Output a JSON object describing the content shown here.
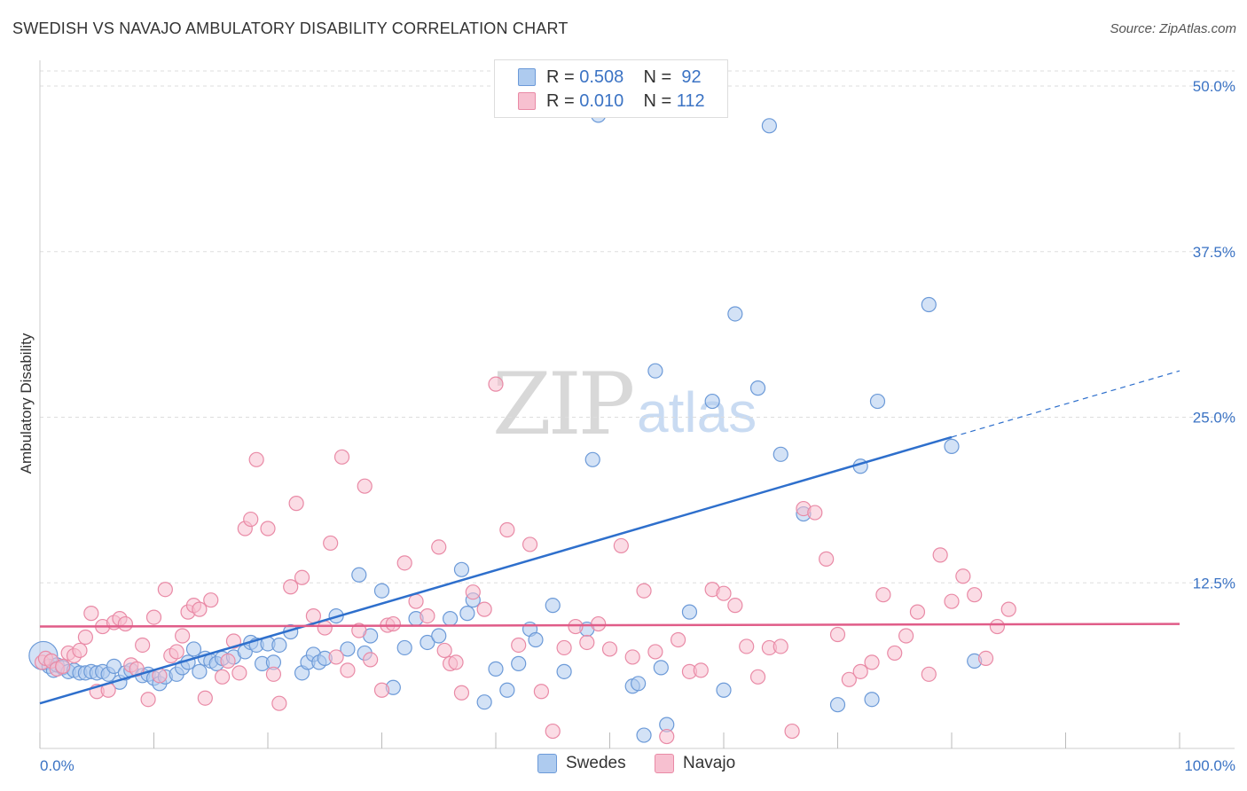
{
  "title": "SWEDISH VS NAVAJO AMBULATORY DISABILITY CORRELATION CHART",
  "source": "Source: ZipAtlas.com",
  "watermark": {
    "zip": "ZIP",
    "atlas": "atlas"
  },
  "legend": {
    "rows": [
      {
        "r_label": "R =",
        "r_value": "0.508",
        "n_label": "N =",
        "n_value": "92"
      },
      {
        "r_label": "R =",
        "r_value": "0.010",
        "n_label": "N =",
        "n_value": "112"
      }
    ]
  },
  "colors": {
    "swedes_fill": "#aecbef",
    "swedes_stroke": "#6c9ad8",
    "swedes_line": "#2e6fcc",
    "navajo_fill": "#f7c0d0",
    "navajo_stroke": "#e98aa6",
    "navajo_line": "#e05c88",
    "grid": "#dddddd",
    "tick_text": "#3b73c4"
  },
  "chart_data": {
    "type": "scatter",
    "title": "SWEDISH VS NAVAJO AMBULATORY DISABILITY CORRELATION CHART",
    "xlabel": "",
    "ylabel": "Ambulatory Disability",
    "xlim": [
      0,
      100
    ],
    "ylim": [
      0,
      50
    ],
    "x_tick_labels": [
      "0.0%",
      "100.0%"
    ],
    "y_ticks": [
      12.5,
      25.0,
      37.5,
      50.0
    ],
    "y_tick_labels": [
      "12.5%",
      "25.0%",
      "37.5%",
      "50.0%"
    ],
    "grid": true,
    "legend_placement": "bottom",
    "series": [
      {
        "name": "Swedes",
        "trend": {
          "x0": 0,
          "y0": 3.4,
          "x1": 80,
          "y1": 23.5,
          "dashed_to_x": 100,
          "dashed_to_y": 28.5
        },
        "points": [
          [
            0.3,
            7.0
          ],
          [
            0.8,
            6.2
          ],
          [
            1.2,
            5.9
          ],
          [
            1.5,
            6.3
          ],
          [
            2.0,
            6.1
          ],
          [
            2.5,
            5.8
          ],
          [
            3.0,
            5.9
          ],
          [
            3.5,
            5.7
          ],
          [
            4.0,
            5.7
          ],
          [
            4.5,
            5.8
          ],
          [
            5.0,
            5.7
          ],
          [
            5.5,
            5.8
          ],
          [
            6.0,
            5.6
          ],
          [
            6.5,
            6.2
          ],
          [
            7.0,
            5.0
          ],
          [
            7.5,
            5.7
          ],
          [
            8.0,
            5.9
          ],
          [
            9.0,
            5.5
          ],
          [
            9.5,
            5.6
          ],
          [
            10.0,
            5.3
          ],
          [
            10.5,
            4.9
          ],
          [
            11.0,
            5.4
          ],
          [
            12.0,
            5.6
          ],
          [
            12.5,
            6.1
          ],
          [
            13.0,
            6.5
          ],
          [
            13.5,
            7.5
          ],
          [
            14.0,
            5.8
          ],
          [
            14.5,
            6.8
          ],
          [
            15.0,
            6.6
          ],
          [
            15.5,
            6.4
          ],
          [
            16.0,
            6.8
          ],
          [
            17.0,
            6.9
          ],
          [
            18.0,
            7.3
          ],
          [
            18.5,
            8.0
          ],
          [
            19.0,
            7.8
          ],
          [
            19.5,
            6.4
          ],
          [
            20.0,
            7.9
          ],
          [
            20.5,
            6.5
          ],
          [
            21.0,
            7.8
          ],
          [
            22.0,
            8.8
          ],
          [
            23.0,
            5.7
          ],
          [
            23.5,
            6.5
          ],
          [
            24.0,
            7.1
          ],
          [
            24.5,
            6.5
          ],
          [
            25.0,
            6.8
          ],
          [
            26.0,
            10.0
          ],
          [
            27.0,
            7.5
          ],
          [
            28.0,
            13.1
          ],
          [
            28.5,
            7.2
          ],
          [
            29.0,
            8.5
          ],
          [
            30.0,
            11.9
          ],
          [
            31.0,
            4.6
          ],
          [
            32.0,
            7.6
          ],
          [
            33.0,
            9.8
          ],
          [
            34.0,
            8.0
          ],
          [
            35.0,
            8.5
          ],
          [
            36.0,
            9.8
          ],
          [
            37.0,
            13.5
          ],
          [
            37.5,
            10.2
          ],
          [
            38.0,
            11.2
          ],
          [
            39.0,
            3.5
          ],
          [
            40.0,
            6.0
          ],
          [
            41.0,
            4.4
          ],
          [
            42.0,
            6.4
          ],
          [
            43.0,
            9.0
          ],
          [
            43.5,
            8.2
          ],
          [
            45.0,
            10.8
          ],
          [
            46.0,
            5.8
          ],
          [
            48.0,
            9.0
          ],
          [
            48.5,
            21.8
          ],
          [
            49.0,
            47.8
          ],
          [
            52.0,
            4.7
          ],
          [
            52.5,
            4.9
          ],
          [
            53.0,
            1.0
          ],
          [
            54.0,
            28.5
          ],
          [
            54.5,
            6.1
          ],
          [
            55.0,
            1.8
          ],
          [
            57.0,
            10.3
          ],
          [
            59.0,
            26.2
          ],
          [
            60.0,
            4.4
          ],
          [
            61.0,
            32.8
          ],
          [
            63.0,
            27.2
          ],
          [
            64.0,
            47.0
          ],
          [
            65.0,
            22.2
          ],
          [
            67.0,
            17.7
          ],
          [
            70.0,
            3.3
          ],
          [
            72.0,
            21.3
          ],
          [
            73.0,
            3.7
          ],
          [
            73.5,
            26.2
          ],
          [
            78.0,
            33.5
          ],
          [
            80.0,
            22.8
          ],
          [
            82.0,
            6.6
          ]
        ]
      },
      {
        "name": "Navajo",
        "trend": {
          "x0": 0,
          "y0": 9.2,
          "x1": 100,
          "y1": 9.4
        },
        "points": [
          [
            0.2,
            6.5
          ],
          [
            0.5,
            6.8
          ],
          [
            1.0,
            6.6
          ],
          [
            1.5,
            6.0
          ],
          [
            2.0,
            6.2
          ],
          [
            2.5,
            7.2
          ],
          [
            3.0,
            7.0
          ],
          [
            3.5,
            7.4
          ],
          [
            4.0,
            8.4
          ],
          [
            4.5,
            10.2
          ],
          [
            5.0,
            4.3
          ],
          [
            5.5,
            9.2
          ],
          [
            6.0,
            4.4
          ],
          [
            6.5,
            9.5
          ],
          [
            7.0,
            9.8
          ],
          [
            7.5,
            9.4
          ],
          [
            8.0,
            6.3
          ],
          [
            8.5,
            6.0
          ],
          [
            9.0,
            7.8
          ],
          [
            9.5,
            3.7
          ],
          [
            10.0,
            9.9
          ],
          [
            10.5,
            5.5
          ],
          [
            11.0,
            12.0
          ],
          [
            11.5,
            7.0
          ],
          [
            12.0,
            7.3
          ],
          [
            12.5,
            8.5
          ],
          [
            13.0,
            10.3
          ],
          [
            13.5,
            10.8
          ],
          [
            14.0,
            10.5
          ],
          [
            14.5,
            3.8
          ],
          [
            15.0,
            11.2
          ],
          [
            16.0,
            5.4
          ],
          [
            16.5,
            6.6
          ],
          [
            17.0,
            8.1
          ],
          [
            17.5,
            5.7
          ],
          [
            18.0,
            16.6
          ],
          [
            18.5,
            17.3
          ],
          [
            19.0,
            21.8
          ],
          [
            20.0,
            16.6
          ],
          [
            20.5,
            5.6
          ],
          [
            21.0,
            3.4
          ],
          [
            22.0,
            12.2
          ],
          [
            22.5,
            18.5
          ],
          [
            23.0,
            12.9
          ],
          [
            24.0,
            10.0
          ],
          [
            25.0,
            9.1
          ],
          [
            25.5,
            15.5
          ],
          [
            26.0,
            6.9
          ],
          [
            26.5,
            22.0
          ],
          [
            27.0,
            5.9
          ],
          [
            28.0,
            8.9
          ],
          [
            28.5,
            19.8
          ],
          [
            29.0,
            6.7
          ],
          [
            30.0,
            4.4
          ],
          [
            30.5,
            9.3
          ],
          [
            31.0,
            9.4
          ],
          [
            32.0,
            14.0
          ],
          [
            33.0,
            11.1
          ],
          [
            34.0,
            10.0
          ],
          [
            35.0,
            15.2
          ],
          [
            35.5,
            7.4
          ],
          [
            36.0,
            6.4
          ],
          [
            36.5,
            6.5
          ],
          [
            37.0,
            4.2
          ],
          [
            38.0,
            11.8
          ],
          [
            39.0,
            10.5
          ],
          [
            40.0,
            27.5
          ],
          [
            41.0,
            16.5
          ],
          [
            42.0,
            7.8
          ],
          [
            43.0,
            15.4
          ],
          [
            44.0,
            4.3
          ],
          [
            45.0,
            1.3
          ],
          [
            46.0,
            7.6
          ],
          [
            47.0,
            9.2
          ],
          [
            48.0,
            8.0
          ],
          [
            49.0,
            9.4
          ],
          [
            50.0,
            7.5
          ],
          [
            51.0,
            15.3
          ],
          [
            52.0,
            6.9
          ],
          [
            53.0,
            11.9
          ],
          [
            54.0,
            7.3
          ],
          [
            55.0,
            0.9
          ],
          [
            56.0,
            8.2
          ],
          [
            57.0,
            5.8
          ],
          [
            58.0,
            5.9
          ],
          [
            59.0,
            12.0
          ],
          [
            60.0,
            11.7
          ],
          [
            61.0,
            10.8
          ],
          [
            62.0,
            7.7
          ],
          [
            63.0,
            5.4
          ],
          [
            64.0,
            7.6
          ],
          [
            65.0,
            7.7
          ],
          [
            66.0,
            1.3
          ],
          [
            67.0,
            18.1
          ],
          [
            68.0,
            17.8
          ],
          [
            69.0,
            14.3
          ],
          [
            70.0,
            8.6
          ],
          [
            71.0,
            5.2
          ],
          [
            72.0,
            5.8
          ],
          [
            73.0,
            6.5
          ],
          [
            74.0,
            11.6
          ],
          [
            75.0,
            7.2
          ],
          [
            76.0,
            8.5
          ],
          [
            77.0,
            10.3
          ],
          [
            78.0,
            5.6
          ],
          [
            79.0,
            14.6
          ],
          [
            80.0,
            11.1
          ],
          [
            81.0,
            13.0
          ],
          [
            82.0,
            11.6
          ],
          [
            83.0,
            6.8
          ],
          [
            84.0,
            9.2
          ],
          [
            85.0,
            10.5
          ]
        ]
      }
    ]
  },
  "bottom_legend": {
    "swedes": "Swedes",
    "navajo": "Navajo"
  }
}
